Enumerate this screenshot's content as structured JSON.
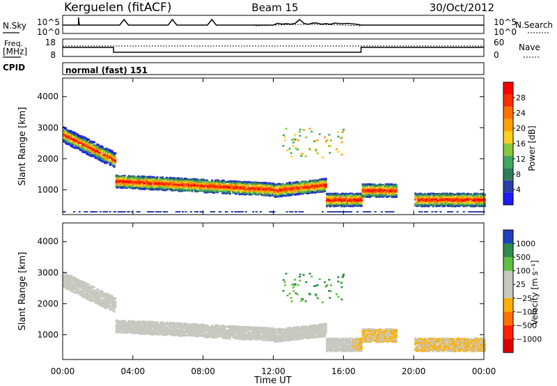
{
  "header": {
    "station": "Kerguelen (fitACF)",
    "beam": "Beam 15",
    "date": "30/Oct/2012"
  },
  "top_panels": {
    "nsky_label": "N.Sky",
    "nsearch_label": "N.Search",
    "freq_label_1": "Freq.",
    "freq_label_2": "[MHz]",
    "nave_label": "Nave",
    "cpid_label": "CPID",
    "cpid_value": "normal (fast) 151",
    "noise_left_ticks": [
      "10^5",
      "10^0"
    ],
    "noise_right_ticks": [
      "10^5",
      "10^0"
    ],
    "freq_ticks": [
      "18",
      "8"
    ],
    "nave_ticks": [
      "60",
      "0"
    ]
  },
  "chart_data": [
    {
      "type": "heatmap",
      "name": "power",
      "ylabel": "Slant Range [km]",
      "ylim": [
        200,
        4600
      ],
      "yticks": [
        1000,
        2000,
        3000,
        4000
      ],
      "xlim": [
        0,
        24
      ],
      "colorbar_label": "Power [dB]",
      "colorbar_ticks": [
        "4",
        "8",
        "12",
        "16",
        "20",
        "24",
        "28"
      ],
      "colorbar_range": [
        0,
        30
      ],
      "colors": [
        "#1a1aff",
        "#2a3ea8",
        "#2f7d5a",
        "#40a860",
        "#88c83c",
        "#ffd020",
        "#ffa000",
        "#ff7000",
        "#ff3000",
        "#ff0000"
      ]
    },
    {
      "type": "heatmap",
      "name": "velocity",
      "ylabel": "Slant Range [km]",
      "ylim": [
        200,
        4600
      ],
      "yticks": [
        1000,
        2000,
        3000,
        4000
      ],
      "xlim": [
        0,
        24
      ],
      "xticks": [
        "00:00",
        "04:00",
        "08:00",
        "12:00",
        "16:00",
        "20:00",
        "00:00"
      ],
      "xlabel": "Time UT",
      "colorbar_label": "Velocity [m s⁻¹]",
      "colorbar_ticks": [
        "1000",
        "500",
        "100",
        "25",
        "−25",
        "−100",
        "−500",
        "−1000"
      ],
      "colors": [
        "#2040c0",
        "#2f8c4a",
        "#60c040",
        "#c8c8c0",
        "#c8c8c0",
        "#ffb000",
        "#ff7000",
        "#ff2000",
        "#e00000"
      ]
    }
  ]
}
